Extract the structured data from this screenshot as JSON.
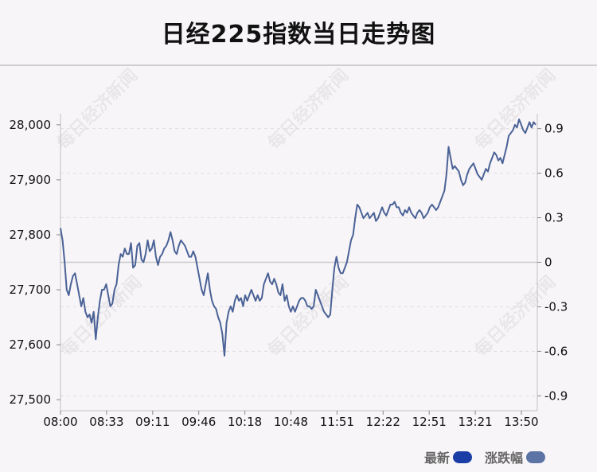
{
  "title": "日经225指数当日走势图",
  "watermark": "每日经济新闻",
  "legend": [
    {
      "label": "最新",
      "color": "#1a3ea5"
    },
    {
      "label": "涨跌幅",
      "color": "#5b74a5"
    }
  ],
  "colors": {
    "line": "#4a6296",
    "zero_line": "#c8c8c8",
    "grid": "#e0dce0"
  },
  "chart_data": {
    "type": "line",
    "title": "日经225指数当日走势图",
    "x_ticks": [
      "08:00",
      "08:33",
      "09:11",
      "09:46",
      "10:18",
      "10:48",
      "11:51",
      "12:22",
      "12:51",
      "13:21",
      "13:50"
    ],
    "y_left_ticks": [
      "28,000",
      "27,900",
      "27,800",
      "27,700",
      "27,600",
      "27,500"
    ],
    "y_left_values": [
      28000,
      27900,
      27800,
      27700,
      27600,
      27500
    ],
    "y_left_range": [
      27480,
      28020
    ],
    "y_right_ticks": [
      "0.9",
      "0.6",
      "0.3",
      "0",
      "-0.3",
      "-0.6",
      "-0.9"
    ],
    "y_right_values": [
      0.9,
      0.6,
      0.3,
      0,
      -0.3,
      -0.6,
      -0.9
    ],
    "y_right_range": [
      -1.0,
      1.0
    ],
    "reference_line": 0,
    "series": [
      {
        "values": [
          27812,
          27790,
          27750,
          27700,
          27690,
          27710,
          27725,
          27730,
          27710,
          27690,
          27670,
          27685,
          27660,
          27650,
          27655,
          27640,
          27660,
          27610,
          27650,
          27680,
          27700,
          27700,
          27710,
          27690,
          27670,
          27675,
          27700,
          27710,
          27745,
          27765,
          27760,
          27775,
          27765,
          27765,
          27785,
          27740,
          27745,
          27780,
          27785,
          27755,
          27750,
          27765,
          27790,
          27770,
          27775,
          27790,
          27760,
          27745,
          27760,
          27765,
          27775,
          27780,
          27790,
          27805,
          27790,
          27770,
          27765,
          27780,
          27790,
          27785,
          27780,
          27770,
          27760,
          27760,
          27770,
          27760,
          27740,
          27720,
          27700,
          27690,
          27710,
          27730,
          27700,
          27680,
          27670,
          27665,
          27650,
          27640,
          27620,
          27580,
          27640,
          27660,
          27670,
          27660,
          27680,
          27690,
          27680,
          27685,
          27670,
          27690,
          27680,
          27690,
          27700,
          27690,
          27680,
          27690,
          27680,
          27685,
          27710,
          27720,
          27730,
          27715,
          27710,
          27720,
          27710,
          27695,
          27690,
          27710,
          27680,
          27690,
          27670,
          27660,
          27670,
          27660,
          27670,
          27680,
          27685,
          27685,
          27680,
          27670,
          27670,
          27665,
          27670,
          27700,
          27690,
          27680,
          27670,
          27660,
          27655,
          27650,
          27655,
          27700,
          27740,
          27760,
          27740,
          27730,
          27730,
          27740,
          27750,
          27770,
          27790,
          27800,
          27830,
          27855,
          27850,
          27840,
          27830,
          27835,
          27840,
          27830,
          27835,
          27840,
          27825,
          27830,
          27840,
          27850,
          27840,
          27835,
          27845,
          27855,
          27855,
          27860,
          27850,
          27850,
          27840,
          27835,
          27845,
          27840,
          27850,
          27840,
          27835,
          27830,
          27840,
          27845,
          27840,
          27830,
          27835,
          27840,
          27850,
          27855,
          27850,
          27845,
          27850,
          27860,
          27870,
          27880,
          27910,
          27960,
          27940,
          27920,
          27925,
          27920,
          27915,
          27900,
          27890,
          27895,
          27910,
          27920,
          27925,
          27930,
          27920,
          27910,
          27905,
          27900,
          27910,
          27920,
          27915,
          27930,
          27940,
          27950,
          27945,
          27935,
          27940,
          27930,
          27945,
          27960,
          27980,
          27985,
          27990,
          28000,
          27995,
          28010,
          28000,
          27990,
          27985,
          27995,
          28005,
          27995,
          28005,
          28000
        ]
      }
    ]
  }
}
